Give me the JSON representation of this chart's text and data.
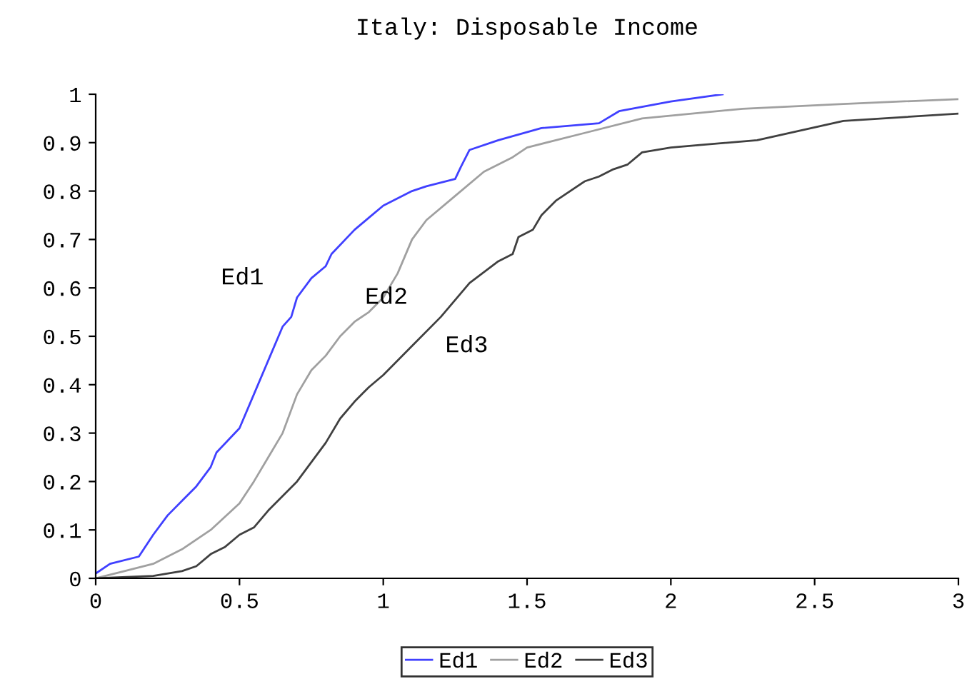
{
  "chart_data": {
    "type": "line",
    "title": "Italy: Disposable Income",
    "xlim": [
      0,
      3
    ],
    "ylim": [
      0,
      1
    ],
    "xticks": [
      0,
      0.5,
      1,
      1.5,
      2,
      2.5,
      3
    ],
    "yticks": [
      0,
      0.1,
      0.2,
      0.3,
      0.4,
      0.5,
      0.6,
      0.7,
      0.8,
      0.9,
      1
    ],
    "grid": false,
    "legend": "bottom",
    "marker": "none",
    "line_style": "solid",
    "annotations": [
      "Ed1",
      "Ed2",
      "Ed3"
    ],
    "series": [
      {
        "name": "Ed1",
        "color": "#4040ff",
        "x": [
          0,
          0.05,
          0.15,
          0.2,
          0.25,
          0.3,
          0.35,
          0.4,
          0.42,
          0.5,
          0.55,
          0.6,
          0.65,
          0.68,
          0.7,
          0.75,
          0.8,
          0.82,
          0.9,
          0.95,
          1.0,
          1.1,
          1.15,
          1.25,
          1.27,
          1.3,
          1.4,
          1.55,
          1.75,
          1.82,
          2.0,
          2.18
        ],
        "values": [
          0.01,
          0.03,
          0.045,
          0.09,
          0.13,
          0.16,
          0.19,
          0.23,
          0.26,
          0.31,
          0.38,
          0.45,
          0.52,
          0.54,
          0.58,
          0.62,
          0.645,
          0.67,
          0.72,
          0.745,
          0.77,
          0.8,
          0.81,
          0.825,
          0.85,
          0.885,
          0.905,
          0.93,
          0.94,
          0.965,
          0.985,
          1.0
        ]
      },
      {
        "name": "Ed2",
        "color": "#a0a0a0",
        "x": [
          0,
          0.1,
          0.2,
          0.3,
          0.4,
          0.5,
          0.55,
          0.6,
          0.65,
          0.7,
          0.75,
          0.8,
          0.85,
          0.9,
          0.95,
          1.0,
          1.05,
          1.1,
          1.15,
          1.25,
          1.35,
          1.45,
          1.5,
          1.7,
          1.9,
          2.25,
          2.6,
          3.0
        ],
        "values": [
          0,
          0.015,
          0.03,
          0.06,
          0.1,
          0.155,
          0.2,
          0.25,
          0.3,
          0.38,
          0.43,
          0.46,
          0.5,
          0.53,
          0.55,
          0.58,
          0.63,
          0.7,
          0.74,
          0.79,
          0.84,
          0.87,
          0.89,
          0.92,
          0.95,
          0.97,
          0.98,
          0.99
        ]
      },
      {
        "name": "Ed3",
        "color": "#404040",
        "x": [
          0,
          0.2,
          0.3,
          0.35,
          0.4,
          0.45,
          0.5,
          0.55,
          0.6,
          0.7,
          0.8,
          0.85,
          0.9,
          0.95,
          1.0,
          1.1,
          1.2,
          1.3,
          1.4,
          1.45,
          1.47,
          1.52,
          1.55,
          1.6,
          1.7,
          1.75,
          1.8,
          1.85,
          1.9,
          2.0,
          2.1,
          2.3,
          2.6,
          3.0
        ],
        "values": [
          0,
          0.005,
          0.015,
          0.025,
          0.05,
          0.065,
          0.09,
          0.105,
          0.14,
          0.2,
          0.28,
          0.33,
          0.365,
          0.395,
          0.42,
          0.48,
          0.54,
          0.61,
          0.655,
          0.67,
          0.705,
          0.72,
          0.75,
          0.78,
          0.82,
          0.83,
          0.845,
          0.855,
          0.88,
          0.89,
          0.895,
          0.905,
          0.945,
          0.96
        ]
      }
    ]
  }
}
